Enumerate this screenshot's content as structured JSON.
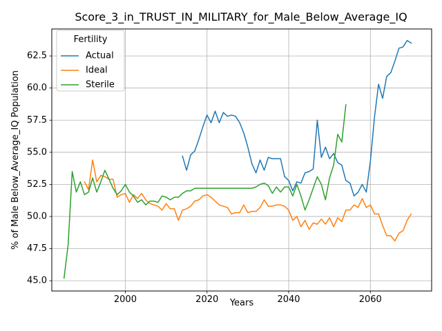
{
  "chart_data": {
    "type": "line",
    "title": "Score_3_in_TRUST_IN_MILITARY_for_Male_Below_Average_IQ",
    "xlabel": "Years",
    "ylabel": "% of Male Below_Average_IQ Population",
    "xlim": [
      1982,
      2075
    ],
    "ylim": [
      44.2,
      64.6
    ],
    "xticks": [
      2000,
      2020,
      2040,
      2060
    ],
    "yticks": [
      45.0,
      47.5,
      50.0,
      52.5,
      55.0,
      57.5,
      60.0,
      62.5
    ],
    "grid": true,
    "legend": {
      "title": "Fertility",
      "position": "upper left"
    },
    "series": [
      {
        "name": "Actual",
        "color": "#1f77b4",
        "x": [
          2014,
          2015,
          2016,
          2017,
          2018,
          2019,
          2020,
          2021,
          2022,
          2023,
          2024,
          2025,
          2026,
          2027,
          2028,
          2029,
          2030,
          2031,
          2032,
          2033,
          2034,
          2035,
          2036,
          2037,
          2038,
          2039,
          2040,
          2041,
          2042,
          2043,
          2044,
          2045,
          2046,
          2047,
          2048,
          2049,
          2050,
          2051,
          2052,
          2053,
          2054,
          2055,
          2056,
          2057,
          2058,
          2059,
          2060,
          2061,
          2062,
          2063,
          2064,
          2065,
          2066,
          2067,
          2068,
          2069,
          2070
        ],
        "y": [
          54.7,
          53.6,
          54.8,
          55.1,
          56.0,
          57.0,
          57.9,
          57.3,
          58.2,
          57.3,
          58.1,
          57.8,
          57.9,
          57.8,
          57.3,
          56.5,
          55.4,
          54.1,
          53.4,
          54.4,
          53.6,
          54.6,
          54.5,
          54.5,
          54.5,
          53.1,
          52.8,
          52.0,
          52.7,
          52.6,
          53.4,
          53.5,
          53.7,
          57.5,
          54.6,
          55.4,
          54.5,
          54.9,
          54.2,
          54.0,
          52.8,
          52.6,
          51.6,
          51.9,
          52.5,
          51.9,
          54.3,
          57.7,
          60.3,
          59.2,
          60.9,
          61.2,
          62.1,
          63.1,
          63.2,
          63.7,
          63.5
        ]
      },
      {
        "name": "Ideal",
        "color": "#ff7f0e",
        "x": [
          1990,
          1991,
          1992,
          1993,
          1994,
          1995,
          1996,
          1997,
          1998,
          1999,
          2000,
          2001,
          2002,
          2003,
          2004,
          2005,
          2006,
          2007,
          2008,
          2009,
          2010,
          2011,
          2012,
          2013,
          2014,
          2015,
          2016,
          2017,
          2018,
          2019,
          2020,
          2021,
          2022,
          2023,
          2024,
          2025,
          2026,
          2027,
          2028,
          2029,
          2030,
          2031,
          2032,
          2033,
          2034,
          2035,
          2036,
          2037,
          2038,
          2039,
          2040,
          2041,
          2042,
          2043,
          2044,
          2045,
          2046,
          2047,
          2048,
          2049,
          2050,
          2051,
          2052,
          2053,
          2054,
          2055,
          2056,
          2057,
          2058,
          2059,
          2060,
          2061,
          2062,
          2063,
          2064,
          2065,
          2066,
          2067,
          2068,
          2069,
          2070
        ],
        "y": [
          52.7,
          52.1,
          54.4,
          52.7,
          53.2,
          53.1,
          52.9,
          52.9,
          51.5,
          51.7,
          51.8,
          51.1,
          51.7,
          51.4,
          51.8,
          51.3,
          51.0,
          50.9,
          50.8,
          50.5,
          51.0,
          50.6,
          50.6,
          49.7,
          50.5,
          50.6,
          50.8,
          51.2,
          51.3,
          51.6,
          51.7,
          51.5,
          51.2,
          50.9,
          50.8,
          50.7,
          50.2,
          50.3,
          50.3,
          50.9,
          50.3,
          50.4,
          50.4,
          50.7,
          51.3,
          50.8,
          50.8,
          50.9,
          50.9,
          50.8,
          50.5,
          49.7,
          50.0,
          49.2,
          49.7,
          49.0,
          49.5,
          49.4,
          49.8,
          49.4,
          49.9,
          49.2,
          49.9,
          49.6,
          50.5,
          50.5,
          50.9,
          50.7,
          51.4,
          50.7,
          50.9,
          50.2,
          50.2,
          49.3,
          48.5,
          48.5,
          48.1,
          48.7,
          48.9,
          49.7,
          50.2
        ]
      },
      {
        "name": "Sterile",
        "color": "#2ca02c",
        "x": [
          1985,
          1986,
          1987,
          1988,
          1989,
          1990,
          1991,
          1992,
          1993,
          1994,
          1995,
          1996,
          1997,
          1998,
          1999,
          2000,
          2001,
          2002,
          2003,
          2004,
          2005,
          2006,
          2007,
          2008,
          2009,
          2010,
          2011,
          2012,
          2013,
          2014,
          2015,
          2016,
          2017,
          2018,
          2019,
          2020,
          2021,
          2022,
          2023,
          2024,
          2025,
          2026,
          2027,
          2028,
          2029,
          2030,
          2031,
          2032,
          2033,
          2034,
          2035,
          2036,
          2037,
          2038,
          2039,
          2040,
          2041,
          2042,
          2043,
          2044,
          2045,
          2046,
          2047,
          2048,
          2049,
          2050,
          2051,
          2052,
          2053,
          2054
        ],
        "y": [
          45.2,
          47.8,
          53.5,
          51.9,
          52.7,
          51.7,
          51.9,
          53.0,
          51.9,
          52.7,
          53.6,
          52.9,
          52.2,
          51.7,
          52.0,
          52.5,
          51.9,
          51.6,
          51.1,
          51.3,
          50.9,
          51.2,
          51.2,
          51.1,
          51.6,
          51.5,
          51.3,
          51.5,
          51.5,
          51.8,
          52.0,
          52.0,
          52.2,
          52.2,
          52.2,
          52.2,
          52.2,
          52.2,
          52.2,
          52.2,
          52.2,
          52.2,
          52.2,
          52.2,
          52.2,
          52.2,
          52.2,
          52.3,
          52.5,
          52.6,
          52.4,
          51.8,
          52.3,
          51.9,
          52.3,
          52.3,
          51.6,
          52.5,
          51.6,
          50.5,
          51.3,
          52.2,
          53.1,
          52.5,
          51.3,
          53.0,
          54.0,
          56.4,
          55.8,
          58.7
        ]
      }
    ]
  }
}
